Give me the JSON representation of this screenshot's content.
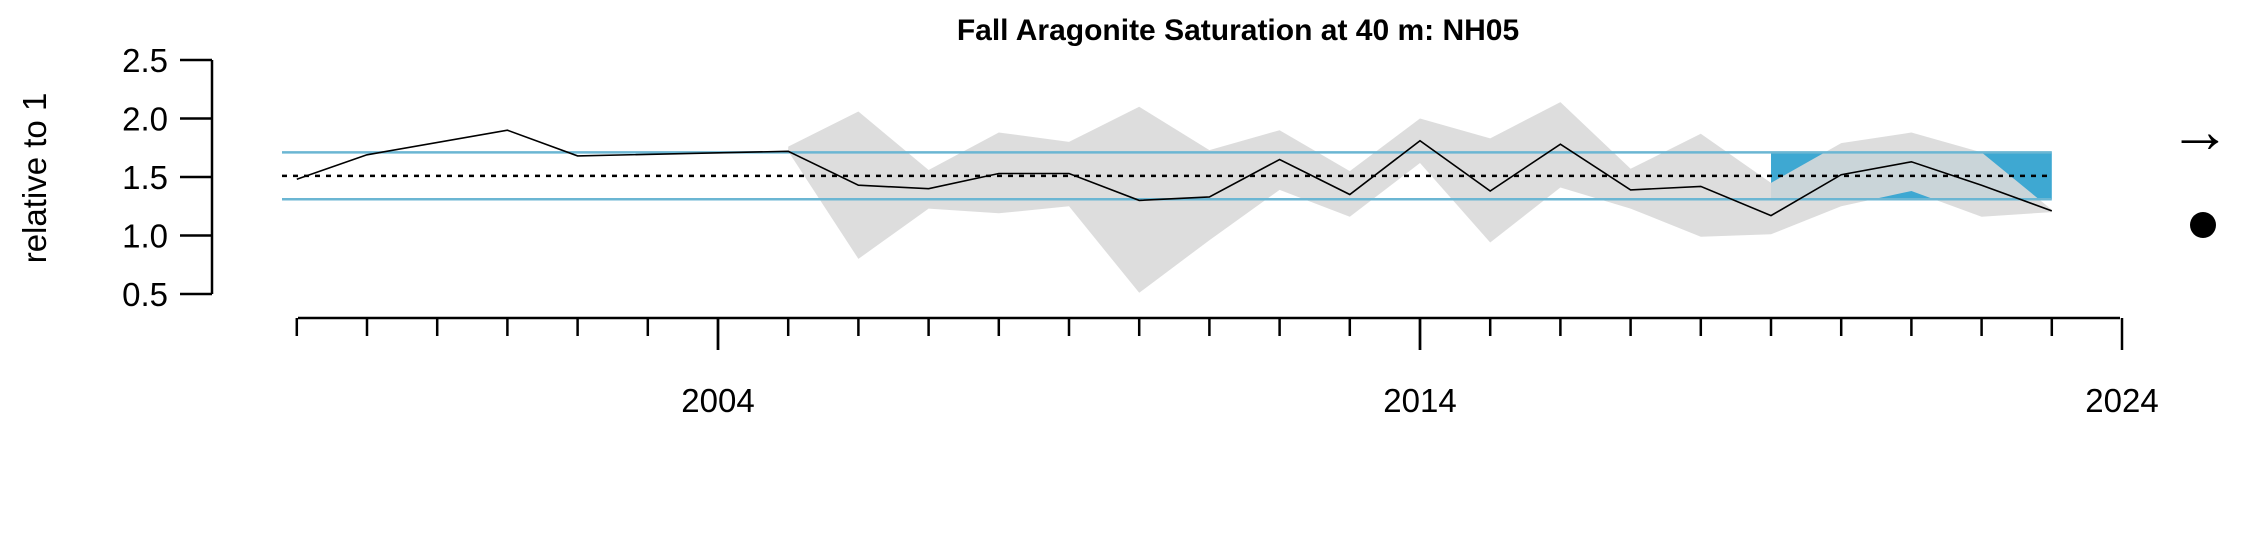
{
  "chart_data": {
    "type": "line",
    "title": "Fall Aragonite Saturation at 40 m: NH05",
    "ylabel": "relative to 1",
    "xlabel": "",
    "ylim": [
      0.5,
      2.5
    ],
    "yticks": [
      "0.5",
      "1.0",
      "1.5",
      "2.0",
      "2.5"
    ],
    "xlim": [
      1998,
      2024
    ],
    "xticks": [
      "2004",
      "2014",
      "2024"
    ],
    "series": [
      {
        "x": [
          1998,
          1999,
          2001,
          2002,
          2005,
          2006,
          2007,
          2008,
          2009,
          2010,
          2011,
          2012,
          2013,
          2014,
          2015,
          2016,
          2017,
          2018,
          2019,
          2020,
          2021,
          2022,
          2023
        ],
        "values": [
          1.48,
          1.69,
          1.9,
          1.68,
          1.72,
          1.43,
          1.4,
          1.53,
          1.53,
          1.3,
          1.33,
          1.65,
          1.35,
          1.81,
          1.38,
          1.78,
          1.39,
          1.42,
          1.17,
          1.52,
          1.63,
          1.43,
          1.21
        ]
      }
    ],
    "error_band": {
      "x": [
        2005,
        2006,
        2007,
        2008,
        2009,
        2010,
        2011,
        2012,
        2013,
        2014,
        2015,
        2016,
        2017,
        2018,
        2019,
        2020,
        2021,
        2022,
        2023
      ],
      "upper": [
        1.76,
        2.06,
        1.56,
        1.88,
        1.8,
        2.1,
        1.73,
        1.9,
        1.55,
        2.0,
        1.83,
        2.14,
        1.57,
        1.87,
        1.45,
        1.79,
        1.88,
        1.71,
        1.22
      ],
      "lower": [
        1.72,
        0.8,
        1.23,
        1.19,
        1.25,
        0.51,
        0.96,
        1.39,
        1.16,
        1.62,
        0.94,
        1.41,
        1.23,
        0.99,
        1.01,
        1.25,
        1.38,
        1.16,
        1.2
      ]
    },
    "mean": 1.51,
    "sd_upper": 1.71,
    "sd_lower": 1.31,
    "highlight_window": [
      2019,
      2023
    ],
    "trend_symbol": "→",
    "status_symbol": "●",
    "colors": {
      "line": "#000000",
      "band": "#d9d9d9",
      "sd_lines": "#6bb6d3",
      "highlight": "#3ea8d2",
      "mean_line": "#000000",
      "mean_line_band": "#aaaaaa"
    },
    "grid": false,
    "legend": "none"
  }
}
